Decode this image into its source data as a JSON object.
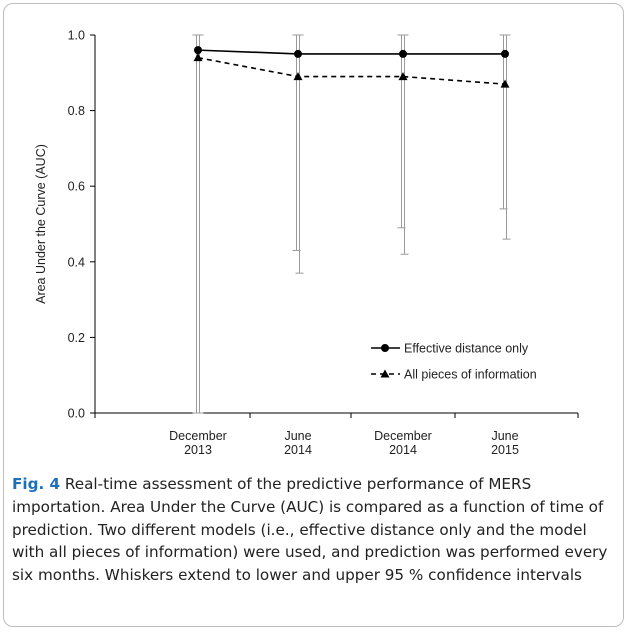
{
  "chart_data": {
    "type": "line",
    "title": "",
    "xlabel": "",
    "ylabel": "Area Under the Curve (AUC)",
    "ylim": [
      0.0,
      1.0
    ],
    "yticks": [
      "0.0",
      "0.2",
      "0.4",
      "0.6",
      "0.8",
      "1.0"
    ],
    "categories": [
      [
        "December",
        "2013"
      ],
      [
        "June",
        "2014"
      ],
      [
        "December",
        "2014"
      ],
      [
        "June",
        "2015"
      ]
    ],
    "grid": false,
    "legend_position": "bottom-right",
    "series": [
      {
        "name": "Effective distance only",
        "line_style": "solid",
        "marker": "circle",
        "color": "#000000",
        "values": [
          0.96,
          0.95,
          0.95,
          0.95
        ],
        "ci_lower": [
          0.0,
          0.43,
          0.49,
          0.54
        ],
        "ci_upper": [
          1.0,
          1.0,
          1.0,
          1.0
        ]
      },
      {
        "name": "All pieces of information",
        "line_style": "dashed",
        "marker": "triangle",
        "color": "#000000",
        "values": [
          0.94,
          0.89,
          0.89,
          0.87
        ],
        "ci_lower": [
          0.0,
          0.37,
          0.42,
          0.46
        ],
        "ci_upper": [
          1.0,
          1.0,
          1.0,
          1.0
        ]
      }
    ]
  },
  "caption": {
    "label": "Fig. 4",
    "text": "Real-time assessment of the predictive performance of MERS importation. Area Under the Curve (AUC) is compared as a function of time of prediction. Two different models (i.e., effective distance only and the model with all pieces of information) were used, and prediction was performed every six months. Whiskers extend to lower and upper 95 % confidence intervals"
  }
}
